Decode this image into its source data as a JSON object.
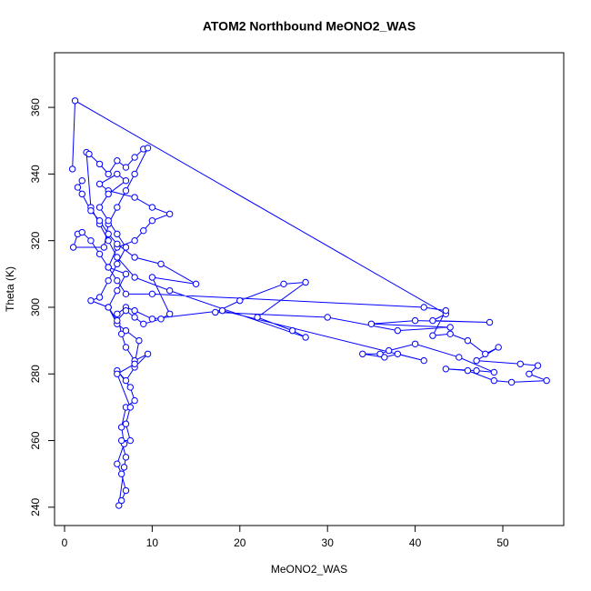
{
  "chart_data": {
    "type": "line",
    "title": "ATOM2 Northbound MeONO2_WAS",
    "xlabel": "MeONO2_WAS",
    "ylabel": "Theta (K)",
    "color": "#0000ff",
    "x": [
      0.9,
      1.2,
      43.5,
      42,
      48.5,
      40,
      35,
      44,
      38,
      30,
      17.2,
      20,
      25,
      27.5,
      22,
      26,
      27.5,
      12,
      8,
      6,
      5,
      4,
      3,
      2.5,
      2.8,
      4,
      5,
      6,
      7,
      8,
      9,
      9.5,
      8,
      7,
      6,
      5,
      4.5,
      1,
      1.5,
      2,
      3,
      4,
      5,
      6,
      7,
      10,
      41,
      43.5,
      42,
      44,
      46,
      48,
      49.5,
      47,
      52,
      54,
      53,
      55,
      51,
      49,
      46,
      43.5,
      47,
      49,
      45,
      40,
      37,
      36,
      34,
      36.5,
      38,
      41,
      18,
      10,
      8,
      7,
      6,
      6.5,
      7,
      8,
      9.5,
      8,
      7,
      6,
      7.5,
      8,
      7,
      6.5,
      6.8,
      6,
      6.5,
      7,
      6.5,
      6.2,
      6.8,
      7,
      6.5,
      7.5,
      7,
      7.5,
      6,
      8,
      8.5,
      7,
      6,
      5,
      6,
      7,
      5,
      6,
      8,
      9,
      10,
      12,
      10,
      8,
      5,
      4,
      6,
      7,
      5,
      4,
      5,
      6,
      7,
      6,
      5,
      4,
      3,
      5,
      6,
      7,
      8,
      9,
      11,
      12,
      10,
      15,
      11,
      8,
      6,
      5,
      4,
      3,
      2,
      1.5,
      2
    ],
    "values": [
      341.5,
      362,
      298,
      296,
      295.5,
      296,
      295,
      294,
      293,
      297,
      298.5,
      302,
      307,
      307.5,
      297,
      293,
      291,
      305,
      309,
      315,
      320,
      325,
      330,
      346.5,
      346,
      343,
      340,
      344,
      342,
      345,
      347.5,
      347.8,
      340,
      335,
      330,
      325,
      318,
      318,
      322,
      322.5,
      320,
      316,
      312,
      308,
      304,
      304,
      300,
      299,
      291.5,
      292,
      290,
      286,
      288,
      284,
      283,
      282.5,
      280,
      278,
      277.5,
      278,
      281,
      281.5,
      281,
      280.5,
      285,
      289,
      287,
      286,
      286,
      285,
      286,
      284,
      299,
      296.5,
      299,
      300,
      298,
      292,
      288,
      284,
      286,
      282,
      278,
      281,
      276,
      272,
      270,
      264,
      259,
      253,
      250,
      245,
      242,
      240.5,
      252,
      255,
      260,
      260,
      265,
      270,
      280,
      283,
      290,
      293,
      295,
      300,
      305,
      310,
      312,
      318,
      320,
      323,
      326,
      328,
      330,
      333,
      335,
      337,
      340,
      338,
      334,
      330,
      326,
      322,
      318,
      313,
      308,
      303,
      302,
      300,
      296,
      299,
      297,
      295,
      296.5,
      298,
      309,
      307,
      313,
      315,
      319,
      322,
      326,
      329,
      334,
      336,
      338
    ],
    "xlim": [
      -1.14,
      56.95
    ],
    "ylim": [
      234.5,
      376.4
    ],
    "xticks": [
      0,
      10,
      20,
      30,
      40,
      50
    ],
    "yticks": [
      240,
      260,
      280,
      300,
      320,
      340,
      360
    ]
  }
}
